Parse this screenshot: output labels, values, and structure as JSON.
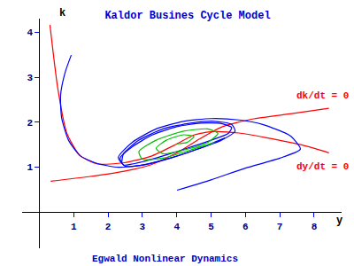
{
  "chart_data": {
    "type": "line",
    "title": "Kaldor Busines Cycle Model",
    "annotations": [
      {
        "text": "Egwald Nonlinear Dynamics"
      }
    ],
    "x_label": "y",
    "y_label": "k",
    "xlim": [
      -0.5,
      8.8
    ],
    "ylim": [
      -0.8,
      4.3
    ],
    "xticks": [
      1,
      2,
      3,
      4,
      5,
      6,
      7,
      8
    ],
    "yticks": [
      1,
      2,
      3,
      4
    ],
    "grid": false,
    "series": [
      {
        "name": "dk/dt = 0",
        "color": "#ff0000",
        "x": [
          0.33,
          1.44,
          2.47,
          3.24,
          4.01,
          4.65,
          5.3,
          6.2,
          7.35,
          8.43
        ],
        "values": [
          0.69,
          0.79,
          0.91,
          1.05,
          1.32,
          1.62,
          1.89,
          2.07,
          2.19,
          2.31
        ]
      },
      {
        "name": "dy/dt = 0",
        "color": "#ff0000",
        "x": [
          0.31,
          0.54,
          0.8,
          1.18,
          1.7,
          2.47,
          3.24,
          4.01,
          4.52,
          5.04,
          5.81,
          6.58,
          7.61,
          8.43
        ],
        "values": [
          4.16,
          2.74,
          1.76,
          1.26,
          1.07,
          1.1,
          1.24,
          1.52,
          1.72,
          1.79,
          1.76,
          1.66,
          1.5,
          1.32
        ]
      },
      {
        "color": "#0000ff",
        "x": [
          2.45,
          3.0,
          3.6,
          4.3,
          5.0,
          5.5,
          5.6,
          5.3,
          4.7,
          4.0,
          3.3,
          2.7,
          2.35,
          2.45
        ],
        "values": [
          1.05,
          1.12,
          1.25,
          1.42,
          1.6,
          1.75,
          1.88,
          1.97,
          1.98,
          1.9,
          1.72,
          1.45,
          1.2,
          1.05
        ]
      },
      {
        "color": "#0000ff",
        "x": [
          0.93,
          0.75,
          0.62,
          0.65,
          0.85,
          1.2,
          1.7,
          2.3,
          3.0,
          3.8,
          4.6,
          5.3,
          5.7,
          5.6,
          5.1,
          4.4,
          3.6,
          2.9,
          2.45,
          2.4
        ],
        "values": [
          3.49,
          3.1,
          2.6,
          2.1,
          1.6,
          1.25,
          1.08,
          1.0,
          1.05,
          1.2,
          1.4,
          1.6,
          1.8,
          1.95,
          2.02,
          1.98,
          1.85,
          1.6,
          1.3,
          1.1
        ]
      },
      {
        "color": "#0000ff",
        "x": [
          4.01,
          5.0,
          6.0,
          7.0,
          7.6,
          7.3,
          6.5,
          5.8,
          5.0,
          4.2,
          3.4,
          2.7,
          2.3,
          2.5,
          3.1,
          3.9,
          4.7,
          5.4
        ],
        "values": [
          0.49,
          0.72,
          0.98,
          1.2,
          1.4,
          1.7,
          1.95,
          2.05,
          2.08,
          2.02,
          1.85,
          1.55,
          1.22,
          1.02,
          1.06,
          1.22,
          1.43,
          1.65
        ]
      },
      {
        "color": "#00c000",
        "x": [
          4.0,
          4.3,
          4.5,
          4.2,
          3.7,
          3.4,
          3.6,
          4.2,
          4.9,
          5.2,
          4.9,
          4.2,
          3.4,
          2.9,
          3.0,
          3.6,
          4.4,
          5.1
        ],
        "values": [
          1.52,
          1.55,
          1.68,
          1.72,
          1.6,
          1.42,
          1.3,
          1.38,
          1.55,
          1.75,
          1.85,
          1.8,
          1.6,
          1.35,
          1.18,
          1.2,
          1.38,
          1.55
        ]
      }
    ]
  }
}
